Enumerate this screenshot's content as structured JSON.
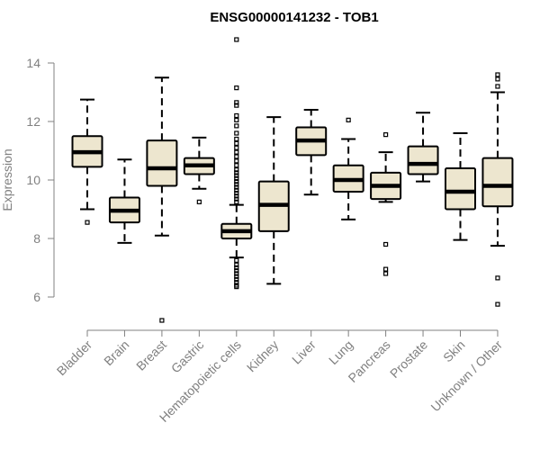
{
  "chart_data": {
    "type": "box",
    "title": "ENSG00000141232 - TOB1",
    "xlabel": "",
    "ylabel": "Expression",
    "ylim": [
      5,
      15
    ],
    "yticks": [
      6,
      8,
      10,
      12,
      14
    ],
    "grid": false,
    "colors": {
      "box_fill": "#ede6cf",
      "box_stroke": "#000000",
      "median": "#000000",
      "axis": "#808080",
      "labels": "#808080",
      "title": "#000000"
    },
    "categories": [
      "Bladder",
      "Brain",
      "Breast",
      "Gastric",
      "Hematopoietic cells",
      "Kidney",
      "Liver",
      "Lung",
      "Pancreas",
      "Prostate",
      "Skin",
      "Unknown / Other"
    ],
    "boxes": [
      {
        "q1": 10.45,
        "median": 10.95,
        "q3": 11.5,
        "whisker_low": 9.0,
        "whisker_high": 12.75,
        "outliers": [
          8.55
        ]
      },
      {
        "q1": 8.55,
        "median": 8.95,
        "q3": 9.4,
        "whisker_low": 7.85,
        "whisker_high": 10.7,
        "outliers": []
      },
      {
        "q1": 9.8,
        "median": 10.4,
        "q3": 11.35,
        "whisker_low": 8.1,
        "whisker_high": 13.5,
        "outliers": [
          5.2
        ]
      },
      {
        "q1": 10.2,
        "median": 10.5,
        "q3": 10.75,
        "whisker_low": 9.7,
        "whisker_high": 11.45,
        "outliers": [
          9.25
        ]
      },
      {
        "q1": 8.0,
        "median": 8.25,
        "q3": 8.5,
        "whisker_low": 7.35,
        "whisker_high": 9.15,
        "outliers": [
          14.8,
          13.15,
          12.65,
          12.55,
          12.2,
          12.05,
          11.85,
          11.6,
          11.4,
          11.25,
          11.1,
          10.95,
          10.8,
          10.65,
          10.5,
          10.35,
          10.25,
          10.15,
          10.05,
          9.95,
          9.85,
          9.75,
          9.65,
          9.55,
          9.45,
          9.35,
          9.25,
          7.25,
          7.1,
          7.0,
          6.9,
          6.8,
          6.7,
          6.6,
          6.5,
          6.4,
          6.35
        ]
      },
      {
        "q1": 8.25,
        "median": 9.15,
        "q3": 9.95,
        "whisker_low": 6.45,
        "whisker_high": 12.15,
        "outliers": []
      },
      {
        "q1": 10.85,
        "median": 11.35,
        "q3": 11.8,
        "whisker_low": 9.5,
        "whisker_high": 12.4,
        "outliers": []
      },
      {
        "q1": 9.6,
        "median": 10.0,
        "q3": 10.5,
        "whisker_low": 8.65,
        "whisker_high": 11.4,
        "outliers": [
          12.05
        ]
      },
      {
        "q1": 9.35,
        "median": 9.8,
        "q3": 10.25,
        "whisker_low": 9.25,
        "whisker_high": 10.95,
        "outliers": [
          11.55,
          7.8,
          6.95,
          6.8
        ]
      },
      {
        "q1": 10.2,
        "median": 10.55,
        "q3": 11.15,
        "whisker_low": 9.95,
        "whisker_high": 12.3,
        "outliers": []
      },
      {
        "q1": 9.0,
        "median": 9.6,
        "q3": 10.4,
        "whisker_low": 7.95,
        "whisker_high": 11.6,
        "outliers": []
      },
      {
        "q1": 9.1,
        "median": 9.8,
        "q3": 10.75,
        "whisker_low": 7.75,
        "whisker_high": 13.0,
        "outliers": [
          13.6,
          13.45,
          13.2,
          6.65,
          5.75
        ]
      }
    ]
  }
}
